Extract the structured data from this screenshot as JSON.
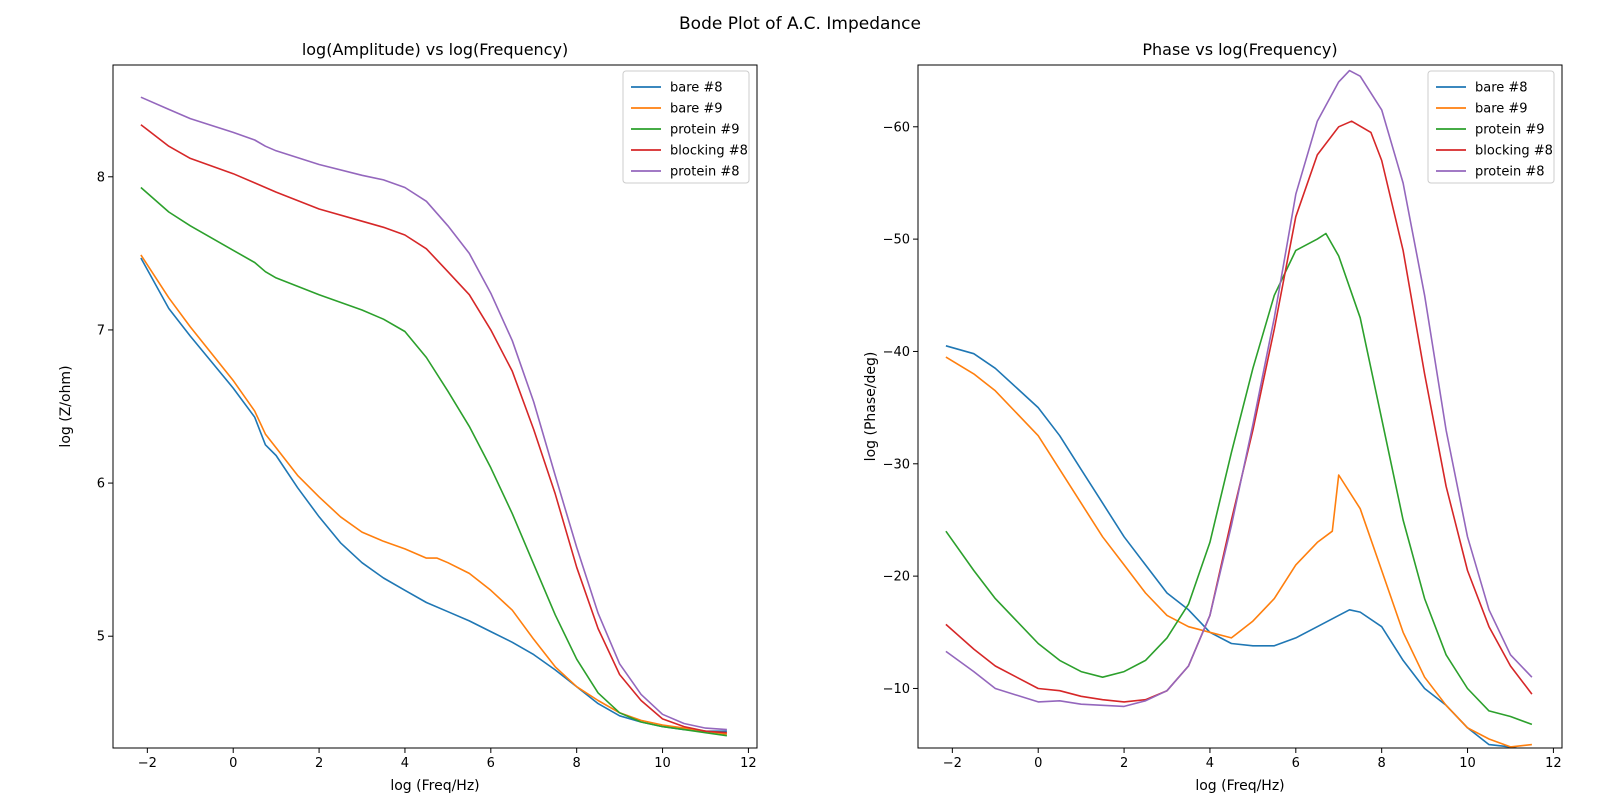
{
  "suptitle": "Bode Plot of A.C. Impedance",
  "chart_data": [
    {
      "type": "line",
      "title": "log(Amplitude) vs log(Frequency)",
      "xlabel": "log (Freq/Hz)",
      "ylabel": "log (Z/ohm)",
      "xlim": [
        -2.8,
        12.2
      ],
      "ylim": [
        4.27,
        8.73
      ],
      "xticks": [
        -2,
        0,
        2,
        4,
        6,
        8,
        10,
        12
      ],
      "xtick_labels": [
        "−2",
        "0",
        "2",
        "4",
        "6",
        "8",
        "10",
        "12"
      ],
      "yticks": [
        5,
        6,
        7,
        8
      ],
      "ytick_labels": [
        "5",
        "6",
        "7",
        "8"
      ],
      "legend_position": "top-right",
      "series": [
        {
          "name": "bare #8",
          "color": "#1f77b4",
          "x": [
            -2.15,
            -1.5,
            -1,
            0,
            0.5,
            0.75,
            1,
            1.5,
            2,
            2.5,
            3,
            3.5,
            4,
            4.5,
            5,
            5.5,
            6,
            6.5,
            7,
            7.5,
            8,
            8.5,
            9,
            9.5,
            10,
            10.5,
            11,
            11.5
          ],
          "y": [
            7.47,
            7.14,
            6.96,
            6.62,
            6.43,
            6.25,
            6.18,
            5.97,
            5.78,
            5.61,
            5.48,
            5.38,
            5.3,
            5.22,
            5.16,
            5.1,
            5.03,
            4.96,
            4.88,
            4.78,
            4.67,
            4.56,
            4.48,
            4.44,
            4.41,
            4.39,
            4.38,
            4.38
          ]
        },
        {
          "name": "bare #9",
          "color": "#ff7f0e",
          "x": [
            -2.15,
            -1.5,
            -1,
            0,
            0.5,
            0.75,
            1,
            1.5,
            2,
            2.5,
            3,
            3.5,
            4,
            4.5,
            4.75,
            5,
            5.5,
            6,
            6.5,
            7,
            7.5,
            8,
            8.5,
            9,
            9.5,
            10,
            10.5,
            11,
            11.5
          ],
          "y": [
            7.49,
            7.21,
            7.02,
            6.67,
            6.47,
            6.32,
            6.23,
            6.05,
            5.91,
            5.78,
            5.68,
            5.62,
            5.57,
            5.51,
            5.51,
            5.48,
            5.41,
            5.3,
            5.17,
            4.98,
            4.8,
            4.67,
            4.58,
            4.5,
            4.45,
            4.42,
            4.4,
            4.38,
            4.36
          ]
        },
        {
          "name": "protein #9",
          "color": "#2ca02c",
          "x": [
            -2.15,
            -1.5,
            -1,
            0,
            0.5,
            0.75,
            1,
            2,
            3,
            3.5,
            4,
            4.5,
            5,
            5.5,
            6,
            6.5,
            7,
            7.5,
            8,
            8.5,
            9,
            9.5,
            10,
            10.5,
            11,
            11.5
          ],
          "y": [
            7.93,
            7.77,
            7.68,
            7.52,
            7.44,
            7.38,
            7.34,
            7.23,
            7.13,
            7.07,
            6.99,
            6.82,
            6.6,
            6.37,
            6.1,
            5.8,
            5.47,
            5.14,
            4.85,
            4.63,
            4.5,
            4.44,
            4.41,
            4.39,
            4.37,
            4.35
          ]
        },
        {
          "name": "blocking #8",
          "color": "#d62728",
          "x": [
            -2.15,
            -1.5,
            -1,
            0,
            0.5,
            0.75,
            1,
            2,
            3,
            3.5,
            4,
            4.5,
            5,
            5.5,
            6,
            6.5,
            7,
            7.5,
            8,
            8.5,
            9,
            9.5,
            10,
            10.5,
            11,
            11.5
          ],
          "y": [
            8.34,
            8.2,
            8.12,
            8.02,
            7.96,
            7.93,
            7.9,
            7.79,
            7.71,
            7.67,
            7.62,
            7.53,
            7.38,
            7.23,
            7.0,
            6.73,
            6.35,
            5.93,
            5.45,
            5.05,
            4.75,
            4.58,
            4.46,
            4.41,
            4.38,
            4.37
          ]
        },
        {
          "name": "protein #8",
          "color": "#9467bd",
          "x": [
            -2.15,
            -1.5,
            -1,
            0,
            0.5,
            0.75,
            1,
            2,
            3,
            3.5,
            4,
            4.5,
            5,
            5.5,
            6,
            6.5,
            7,
            7.5,
            8,
            8.5,
            9,
            9.5,
            10,
            10.5,
            11,
            11.5
          ],
          "y": [
            8.52,
            8.44,
            8.38,
            8.29,
            8.24,
            8.2,
            8.17,
            8.08,
            8.01,
            7.98,
            7.93,
            7.84,
            7.68,
            7.5,
            7.24,
            6.93,
            6.53,
            6.05,
            5.58,
            5.15,
            4.82,
            4.62,
            4.49,
            4.43,
            4.4,
            4.39
          ]
        }
      ]
    },
    {
      "type": "line",
      "title": "Phase vs log(Frequency)",
      "xlabel": "log (Freq/Hz)",
      "ylabel": "log (Phase/deg)",
      "xlim": [
        -2.8,
        12.2
      ],
      "ylim": [
        -4.7,
        -65.5
      ],
      "xticks": [
        -2,
        0,
        2,
        4,
        6,
        8,
        10,
        12
      ],
      "xtick_labels": [
        "−2",
        "0",
        "2",
        "4",
        "6",
        "8",
        "10",
        "12"
      ],
      "yticks": [
        -10,
        -20,
        -30,
        -40,
        -50,
        -60
      ],
      "ytick_labels": [
        "−10",
        "−20",
        "−30",
        "−40",
        "−50",
        "−60"
      ],
      "legend_position": "top-right",
      "series": [
        {
          "name": "bare #8",
          "color": "#1f77b4",
          "x": [
            -2.15,
            -1.5,
            -1,
            0,
            0.5,
            1,
            1.5,
            2,
            2.5,
            3,
            3.5,
            4,
            4.5,
            5,
            5.5,
            6,
            6.5,
            7,
            7.25,
            7.5,
            8,
            8.5,
            9,
            9.5,
            10,
            10.5,
            11,
            11.5
          ],
          "y": [
            -40.5,
            -39.8,
            -38.5,
            -35,
            -32.5,
            -29.5,
            -26.5,
            -23.5,
            -21.0,
            -18.5,
            -17.0,
            -15.0,
            -14.0,
            -13.8,
            -13.8,
            -14.5,
            -15.5,
            -16.5,
            -17.0,
            -16.8,
            -15.5,
            -12.5,
            -10.0,
            -8.5,
            -6.5,
            -5.0,
            -4.8,
            -4.4
          ]
        },
        {
          "name": "bare #9",
          "color": "#ff7f0e",
          "x": [
            -2.15,
            -1.5,
            -1,
            0,
            0.5,
            1,
            1.5,
            2,
            2.5,
            3,
            3.5,
            4,
            4.5,
            5,
            5.5,
            6,
            6.5,
            6.85,
            7.0,
            7.5,
            8,
            8.5,
            9,
            9.5,
            10,
            10.5,
            11,
            11.5
          ],
          "y": [
            -39.5,
            -38.0,
            -36.5,
            -32.5,
            -29.5,
            -26.5,
            -23.5,
            -21.0,
            -18.5,
            -16.5,
            -15.5,
            -15.0,
            -14.5,
            -16.0,
            -18.0,
            -21.0,
            -23.0,
            -24.0,
            -29.0,
            -26.0,
            -20.5,
            -15.0,
            -11.0,
            -8.5,
            -6.5,
            -5.5,
            -4.8,
            -5.0
          ]
        },
        {
          "name": "protein #9",
          "color": "#2ca02c",
          "x": [
            -2.15,
            -1.5,
            -1,
            0,
            0.5,
            1,
            1.5,
            2,
            2.5,
            3,
            3.5,
            4,
            4.5,
            5,
            5.5,
            6,
            6.5,
            6.7,
            7,
            7.5,
            8,
            8.5,
            9,
            9.5,
            10,
            10.5,
            11,
            11.5
          ],
          "y": [
            -24.0,
            -20.5,
            -18.0,
            -14.0,
            -12.5,
            -11.5,
            -11.0,
            -11.5,
            -12.5,
            -14.5,
            -17.5,
            -23.0,
            -31.0,
            -38.5,
            -45.0,
            -49.0,
            -50.0,
            -50.5,
            -48.5,
            -43.0,
            -34.0,
            -25.0,
            -18.0,
            -13.0,
            -10.0,
            -8.0,
            -7.5,
            -6.8
          ]
        },
        {
          "name": "blocking #8",
          "color": "#d62728",
          "x": [
            -2.15,
            -1.5,
            -1,
            0,
            0.5,
            1,
            1.5,
            2,
            2.5,
            3,
            3.5,
            4,
            4.5,
            5,
            5.5,
            6,
            6.5,
            7,
            7.3,
            7.75,
            8,
            8.5,
            9,
            9.5,
            10,
            10.5,
            11,
            11.5
          ],
          "y": [
            -15.7,
            -13.5,
            -12.0,
            -10.0,
            -9.8,
            -9.3,
            -9.0,
            -8.8,
            -9.0,
            -9.8,
            -12.0,
            -16.5,
            -25.0,
            -33.0,
            -42.0,
            -52.0,
            -57.5,
            -60.0,
            -60.5,
            -59.5,
            -57.0,
            -49.0,
            -38.0,
            -28.0,
            -20.5,
            -15.5,
            -12.0,
            -9.5
          ]
        },
        {
          "name": "protein #8",
          "color": "#9467bd",
          "x": [
            -2.15,
            -1.5,
            -1,
            0,
            0.5,
            1,
            1.5,
            2,
            2.5,
            3,
            3.5,
            4,
            4.5,
            5,
            5.5,
            6,
            6.5,
            7,
            7.25,
            7.5,
            8,
            8.5,
            9,
            9.5,
            10,
            10.5,
            11,
            11.5
          ],
          "y": [
            -13.3,
            -11.5,
            -10.0,
            -8.8,
            -8.9,
            -8.6,
            -8.5,
            -8.4,
            -8.9,
            -9.8,
            -12.0,
            -16.5,
            -24.5,
            -33.5,
            -43.0,
            -54.0,
            -60.5,
            -64.0,
            -65.0,
            -64.5,
            -61.5,
            -55.0,
            -45.0,
            -33.0,
            -23.5,
            -17.0,
            -13.0,
            -11.0
          ]
        }
      ]
    }
  ]
}
